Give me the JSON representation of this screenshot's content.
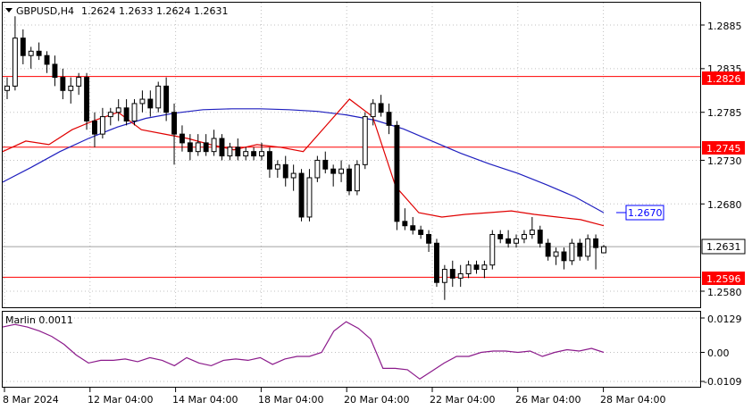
{
  "header": {
    "symbol_timeframe": "GBPUSD,H4",
    "ohlc": "1.2624 1.2633 1.2624 1.2631"
  },
  "price_axis": {
    "ticks": [
      "1.2885",
      "1.2835",
      "1.2785",
      "1.2730",
      "1.2680",
      "1.2580"
    ],
    "tick_values": [
      1.2885,
      1.2835,
      1.2785,
      1.273,
      1.268,
      1.258
    ]
  },
  "levels": [
    {
      "label": "1.2826",
      "value": 1.2826,
      "color": "#ff0000"
    },
    {
      "label": "1.2745",
      "value": 1.2745,
      "color": "#ff0000"
    },
    {
      "label": "1.2596",
      "value": 1.2596,
      "color": "#ff0000"
    }
  ],
  "current_price": {
    "label": "1.2631",
    "value": 1.2631
  },
  "blue_ma_label": {
    "label": "1.2670",
    "value": 1.267,
    "color": "#0000ff"
  },
  "indicator": {
    "name": "Marlin 0.0011",
    "ticks": [
      "0.0129",
      "0.00",
      "-0.0109"
    ]
  },
  "time_axis": {
    "labels": [
      "8 Mar 2024",
      "12 Mar 04:00",
      "14 Mar 04:00",
      "18 Mar 04:00",
      "20 Mar 04:00",
      "22 Mar 04:00",
      "26 Mar 04:00",
      "28 Mar 04:00"
    ]
  },
  "colors": {
    "ma_blue": "#1f1fbf",
    "ma_red": "#e00000",
    "oscillator": "#8b1a8b",
    "bull_body": "#ffffff",
    "bear_body": "#000000"
  },
  "chart_data": {
    "type": "candlestick",
    "symbol": "GBPUSD",
    "timeframe": "H4",
    "candles": [
      [
        1.281,
        1.2825,
        1.28,
        1.2815
      ],
      [
        1.2815,
        1.2895,
        1.281,
        1.287
      ],
      [
        1.287,
        1.288,
        1.284,
        1.285
      ],
      [
        1.285,
        1.286,
        1.2835,
        1.2855
      ],
      [
        1.2855,
        1.2865,
        1.2845,
        1.285
      ],
      [
        1.285,
        1.2855,
        1.283,
        1.284
      ],
      [
        1.284,
        1.285,
        1.2815,
        1.2825
      ],
      [
        1.2825,
        1.2835,
        1.28,
        1.281
      ],
      [
        1.281,
        1.2825,
        1.2795,
        1.2815
      ],
      [
        1.2815,
        1.283,
        1.2805,
        1.2825
      ],
      [
        1.2825,
        1.283,
        1.2765,
        1.2775
      ],
      [
        1.2775,
        1.2785,
        1.2745,
        1.276
      ],
      [
        1.276,
        1.279,
        1.2755,
        1.278
      ],
      [
        1.278,
        1.279,
        1.277,
        1.2785
      ],
      [
        1.2785,
        1.28,
        1.2775,
        1.279
      ],
      [
        1.279,
        1.28,
        1.277,
        1.2775
      ],
      [
        1.2775,
        1.28,
        1.277,
        1.2795
      ],
      [
        1.2795,
        1.281,
        1.2785,
        1.28
      ],
      [
        1.28,
        1.281,
        1.278,
        1.279
      ],
      [
        1.279,
        1.282,
        1.2785,
        1.2815
      ],
      [
        1.2815,
        1.2825,
        1.2775,
        1.2785
      ],
      [
        1.2785,
        1.2795,
        1.2725,
        1.276
      ],
      [
        1.276,
        1.277,
        1.274,
        1.275
      ],
      [
        1.275,
        1.276,
        1.273,
        1.274
      ],
      [
        1.274,
        1.276,
        1.2735,
        1.275
      ],
      [
        1.275,
        1.276,
        1.2735,
        1.274
      ],
      [
        1.274,
        1.2765,
        1.2735,
        1.2755
      ],
      [
        1.2755,
        1.276,
        1.273,
        1.2735
      ],
      [
        1.2735,
        1.275,
        1.273,
        1.2745
      ],
      [
        1.2745,
        1.2755,
        1.273,
        1.2735
      ],
      [
        1.2735,
        1.2745,
        1.273,
        1.274
      ],
      [
        1.274,
        1.2745,
        1.273,
        1.2735
      ],
      [
        1.2735,
        1.275,
        1.273,
        1.274
      ],
      [
        1.274,
        1.2745,
        1.271,
        1.272
      ],
      [
        1.272,
        1.273,
        1.271,
        1.2725
      ],
      [
        1.2725,
        1.2735,
        1.27,
        1.271
      ],
      [
        1.271,
        1.2725,
        1.2695,
        1.2715
      ],
      [
        1.2715,
        1.272,
        1.266,
        1.2665
      ],
      [
        1.2665,
        1.272,
        1.266,
        1.271
      ],
      [
        1.271,
        1.2735,
        1.2705,
        1.273
      ],
      [
        1.273,
        1.274,
        1.2715,
        1.272
      ],
      [
        1.272,
        1.2725,
        1.27,
        1.2715
      ],
      [
        1.2715,
        1.273,
        1.2705,
        1.272
      ],
      [
        1.272,
        1.2725,
        1.269,
        1.2695
      ],
      [
        1.2695,
        1.273,
        1.269,
        1.2725
      ],
      [
        1.2725,
        1.2785,
        1.272,
        1.278
      ],
      [
        1.278,
        1.28,
        1.277,
        1.2795
      ],
      [
        1.2795,
        1.2805,
        1.278,
        1.2785
      ],
      [
        1.2785,
        1.2795,
        1.276,
        1.277
      ],
      [
        1.277,
        1.2775,
        1.265,
        1.266
      ],
      [
        1.266,
        1.2675,
        1.265,
        1.2655
      ],
      [
        1.2655,
        1.2665,
        1.2645,
        1.265
      ],
      [
        1.265,
        1.2655,
        1.264,
        1.2645
      ],
      [
        1.2645,
        1.265,
        1.2625,
        1.2635
      ],
      [
        1.2635,
        1.264,
        1.2585,
        1.259
      ],
      [
        1.259,
        1.261,
        1.257,
        1.2605
      ],
      [
        1.2605,
        1.2615,
        1.2585,
        1.2595
      ],
      [
        1.2595,
        1.261,
        1.2585,
        1.26
      ],
      [
        1.26,
        1.2615,
        1.2595,
        1.261
      ],
      [
        1.261,
        1.2615,
        1.26,
        1.2605
      ],
      [
        1.2605,
        1.2615,
        1.2595,
        1.261
      ],
      [
        1.261,
        1.265,
        1.2605,
        1.2645
      ],
      [
        1.2645,
        1.265,
        1.2635,
        1.264
      ],
      [
        1.264,
        1.265,
        1.263,
        1.2635
      ],
      [
        1.2635,
        1.2645,
        1.263,
        1.264
      ],
      [
        1.264,
        1.265,
        1.2635,
        1.2645
      ],
      [
        1.2645,
        1.2665,
        1.264,
        1.265
      ],
      [
        1.265,
        1.2655,
        1.263,
        1.2635
      ],
      [
        1.2635,
        1.264,
        1.2615,
        1.262
      ],
      [
        1.262,
        1.263,
        1.261,
        1.2625
      ],
      [
        1.2625,
        1.263,
        1.2605,
        1.2615
      ],
      [
        1.2615,
        1.264,
        1.261,
        1.2635
      ],
      [
        1.2635,
        1.264,
        1.2615,
        1.262
      ],
      [
        1.262,
        1.2645,
        1.2615,
        1.264
      ],
      [
        1.264,
        1.2645,
        1.2605,
        1.263
      ],
      [
        1.2624,
        1.2633,
        1.2624,
        1.2631
      ]
    ],
    "ma_blue": [
      1.2705,
      1.2722,
      1.274,
      1.2755,
      1.2768,
      1.2778,
      1.2784,
      1.2788,
      1.2789,
      1.2789,
      1.2788,
      1.2786,
      1.2782,
      1.2776,
      1.2766,
      1.2752,
      1.2738,
      1.2726,
      1.2715,
      1.2702,
      1.2688,
      1.267
    ],
    "ma_red": [
      1.274,
      1.2752,
      1.2748,
      1.2765,
      1.2776,
      1.2785,
      1.2765,
      1.276,
      1.2755,
      1.2748,
      1.2742,
      1.2748,
      1.2745,
      1.274,
      1.277,
      1.28,
      1.278,
      1.27,
      1.267,
      1.2665,
      1.2668,
      1.267,
      1.2672,
      1.2668,
      1.2665,
      1.2662,
      1.2655
    ],
    "oscillator": [
      0.0095,
      0.0105,
      0.0095,
      0.008,
      0.006,
      0.003,
      -0.001,
      -0.004,
      -0.003,
      -0.003,
      -0.0025,
      -0.0035,
      -0.002,
      -0.003,
      -0.005,
      -0.002,
      -0.004,
      -0.005,
      -0.003,
      -0.0025,
      -0.003,
      -0.002,
      -0.0045,
      -0.0025,
      -0.0015,
      -0.0015,
      0.0,
      0.008,
      0.0115,
      0.009,
      0.005,
      -0.006,
      -0.006,
      -0.0065,
      -0.01,
      -0.007,
      -0.004,
      -0.0015,
      -0.0015,
      0.0,
      0.0005,
      0.0005,
      0.0,
      0.0005,
      -0.0015,
      0.0,
      0.001,
      0.0005,
      0.0015,
      0.0
    ]
  }
}
